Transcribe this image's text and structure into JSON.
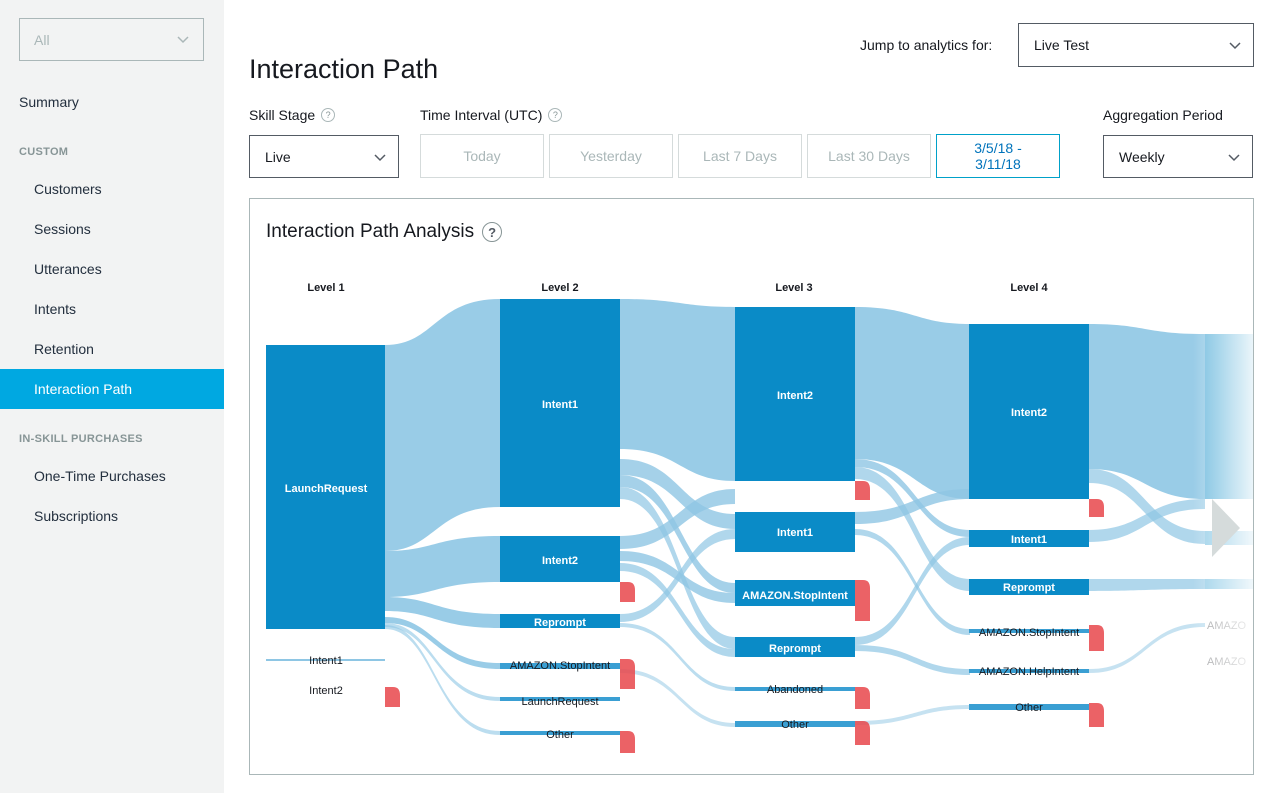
{
  "sidebar": {
    "skill_select": "All",
    "summary": "Summary",
    "custom_section": "CUSTOM",
    "custom_items": [
      "Customers",
      "Sessions",
      "Utterances",
      "Intents",
      "Retention",
      "Interaction Path"
    ],
    "isp_section": "IN-SKILL PURCHASES",
    "isp_items": [
      "One-Time Purchases",
      "Subscriptions"
    ],
    "active_item": "Interaction Path"
  },
  "header": {
    "title": "Interaction Path",
    "jump_label": "Jump to analytics for:",
    "jump_value": "Live Test"
  },
  "filters": {
    "skill_stage_label": "Skill Stage",
    "skill_stage_value": "Live",
    "time_interval_label": "Time Interval (UTC)",
    "time_buttons": [
      "Today",
      "Yesterday",
      "Last 7 Days",
      "Last 30 Days"
    ],
    "date_range_line1": "3/5/18 -",
    "date_range_line2": "3/11/18",
    "aggregation_label": "Aggregation Period",
    "aggregation_value": "Weekly",
    "help_glyph": "?"
  },
  "panel": {
    "title": "Interaction Path Analysis",
    "help_glyph": "?"
  },
  "sankey": {
    "levels": [
      "Level 1",
      "Level 2",
      "Level 3",
      "Level 4"
    ],
    "level1": [
      "LaunchRequest",
      "Intent1",
      "Intent2"
    ],
    "level2": [
      "Intent1",
      "Intent2",
      "Reprompt",
      "AMAZON.StopIntent",
      "LaunchRequest",
      "Other"
    ],
    "level3": [
      "Intent2",
      "Intent1",
      "AMAZON.StopIntent",
      "Reprompt",
      "Abandoned",
      "Other"
    ],
    "level4": [
      "Intent2",
      "Intent1",
      "Reprompt",
      "AMAZON.StopIntent",
      "AMAZON.HelpIntent",
      "Other"
    ],
    "level5_partial": [
      "AMAZO",
      "AMAZO"
    ],
    "colors": {
      "node": "#0a8bc7",
      "link": "#8ec6e4",
      "dropoff": "#e8474b"
    }
  }
}
